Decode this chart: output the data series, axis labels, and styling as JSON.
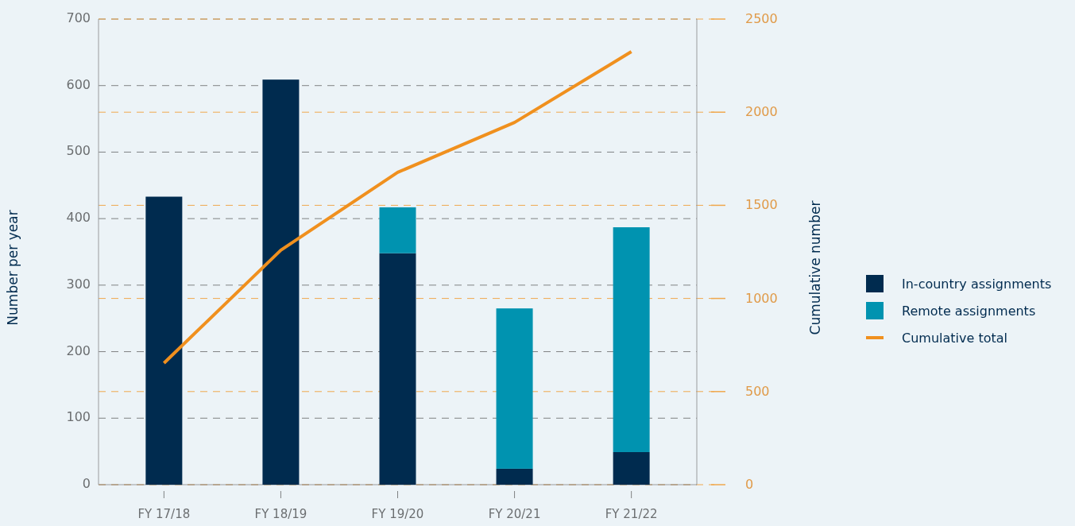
{
  "chart_data": {
    "type": "bar",
    "stacked": true,
    "categories": [
      "FY 17/18",
      "FY 18/19",
      "FY 19/20",
      "FY 20/21",
      "FY 21/22"
    ],
    "ylabel": "Number per year",
    "y2label": "Cumulative number",
    "ylim": [
      0,
      700
    ],
    "yticks": [
      0,
      100,
      200,
      300,
      400,
      500,
      600,
      700
    ],
    "y2lim": [
      0,
      2500
    ],
    "y2ticks": [
      0,
      500,
      1000,
      1500,
      2000,
      2500
    ],
    "grid": true,
    "legend": "right",
    "series": [
      {
        "name": "In-country assignments",
        "color": "#002b4f",
        "values": [
          433,
          609,
          348,
          24,
          49
        ]
      },
      {
        "name": "Remote assignments",
        "color": "#0093b0",
        "values": [
          null,
          null,
          69,
          241,
          338
        ]
      },
      {
        "name": "Cumulative total",
        "type": "line",
        "axis": "y2",
        "color": "#f0901e",
        "values": [
          653,
          1259,
          1677,
          1945,
          2325
        ]
      }
    ]
  }
}
